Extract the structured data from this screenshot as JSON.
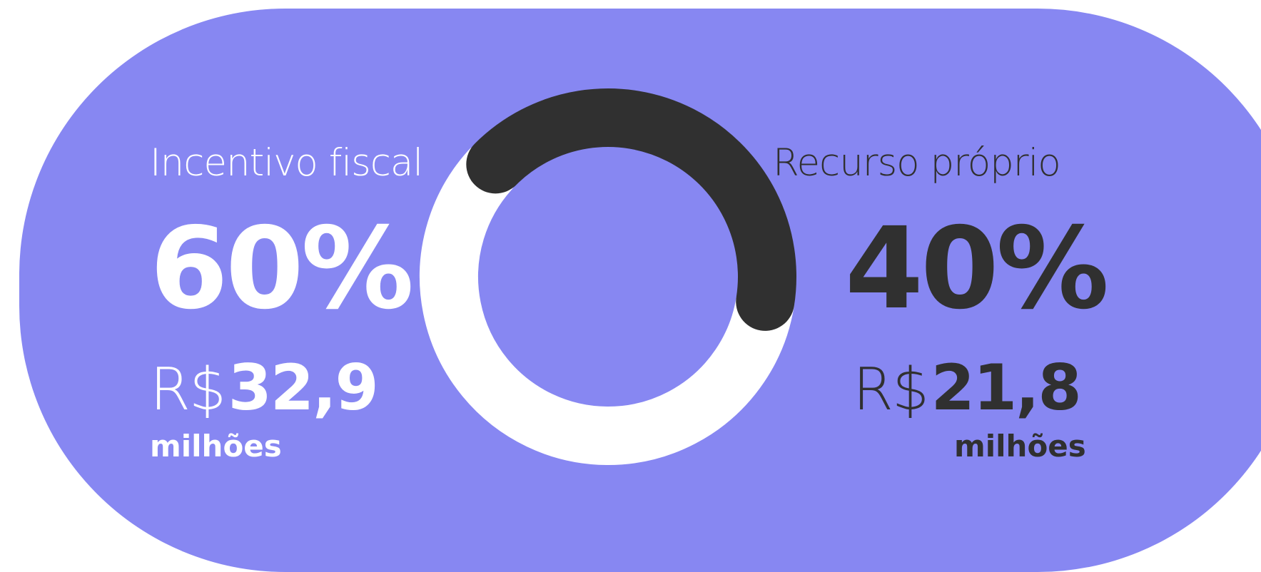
{
  "chart_data": {
    "type": "pie",
    "categories": [
      "Incentivo fiscal",
      "Recurso próprio"
    ],
    "values": [
      60,
      40
    ],
    "amounts": [
      "R$ 32,9 milhões",
      "R$ 21,8 milhões"
    ],
    "colors": [
      "#ffffff",
      "#303030"
    ]
  },
  "left": {
    "label": "Incentivo fiscal",
    "percent": "60%",
    "currency": "R$",
    "amount": "32,9",
    "unit": "milhões"
  },
  "right": {
    "label": "Recurso próprio",
    "percent": "40%",
    "currency": "R$",
    "amount": "21,8",
    "unit": "milhões"
  },
  "colors": {
    "background": "#8787f2",
    "series_light": "#ffffff",
    "series_dark": "#303030"
  }
}
